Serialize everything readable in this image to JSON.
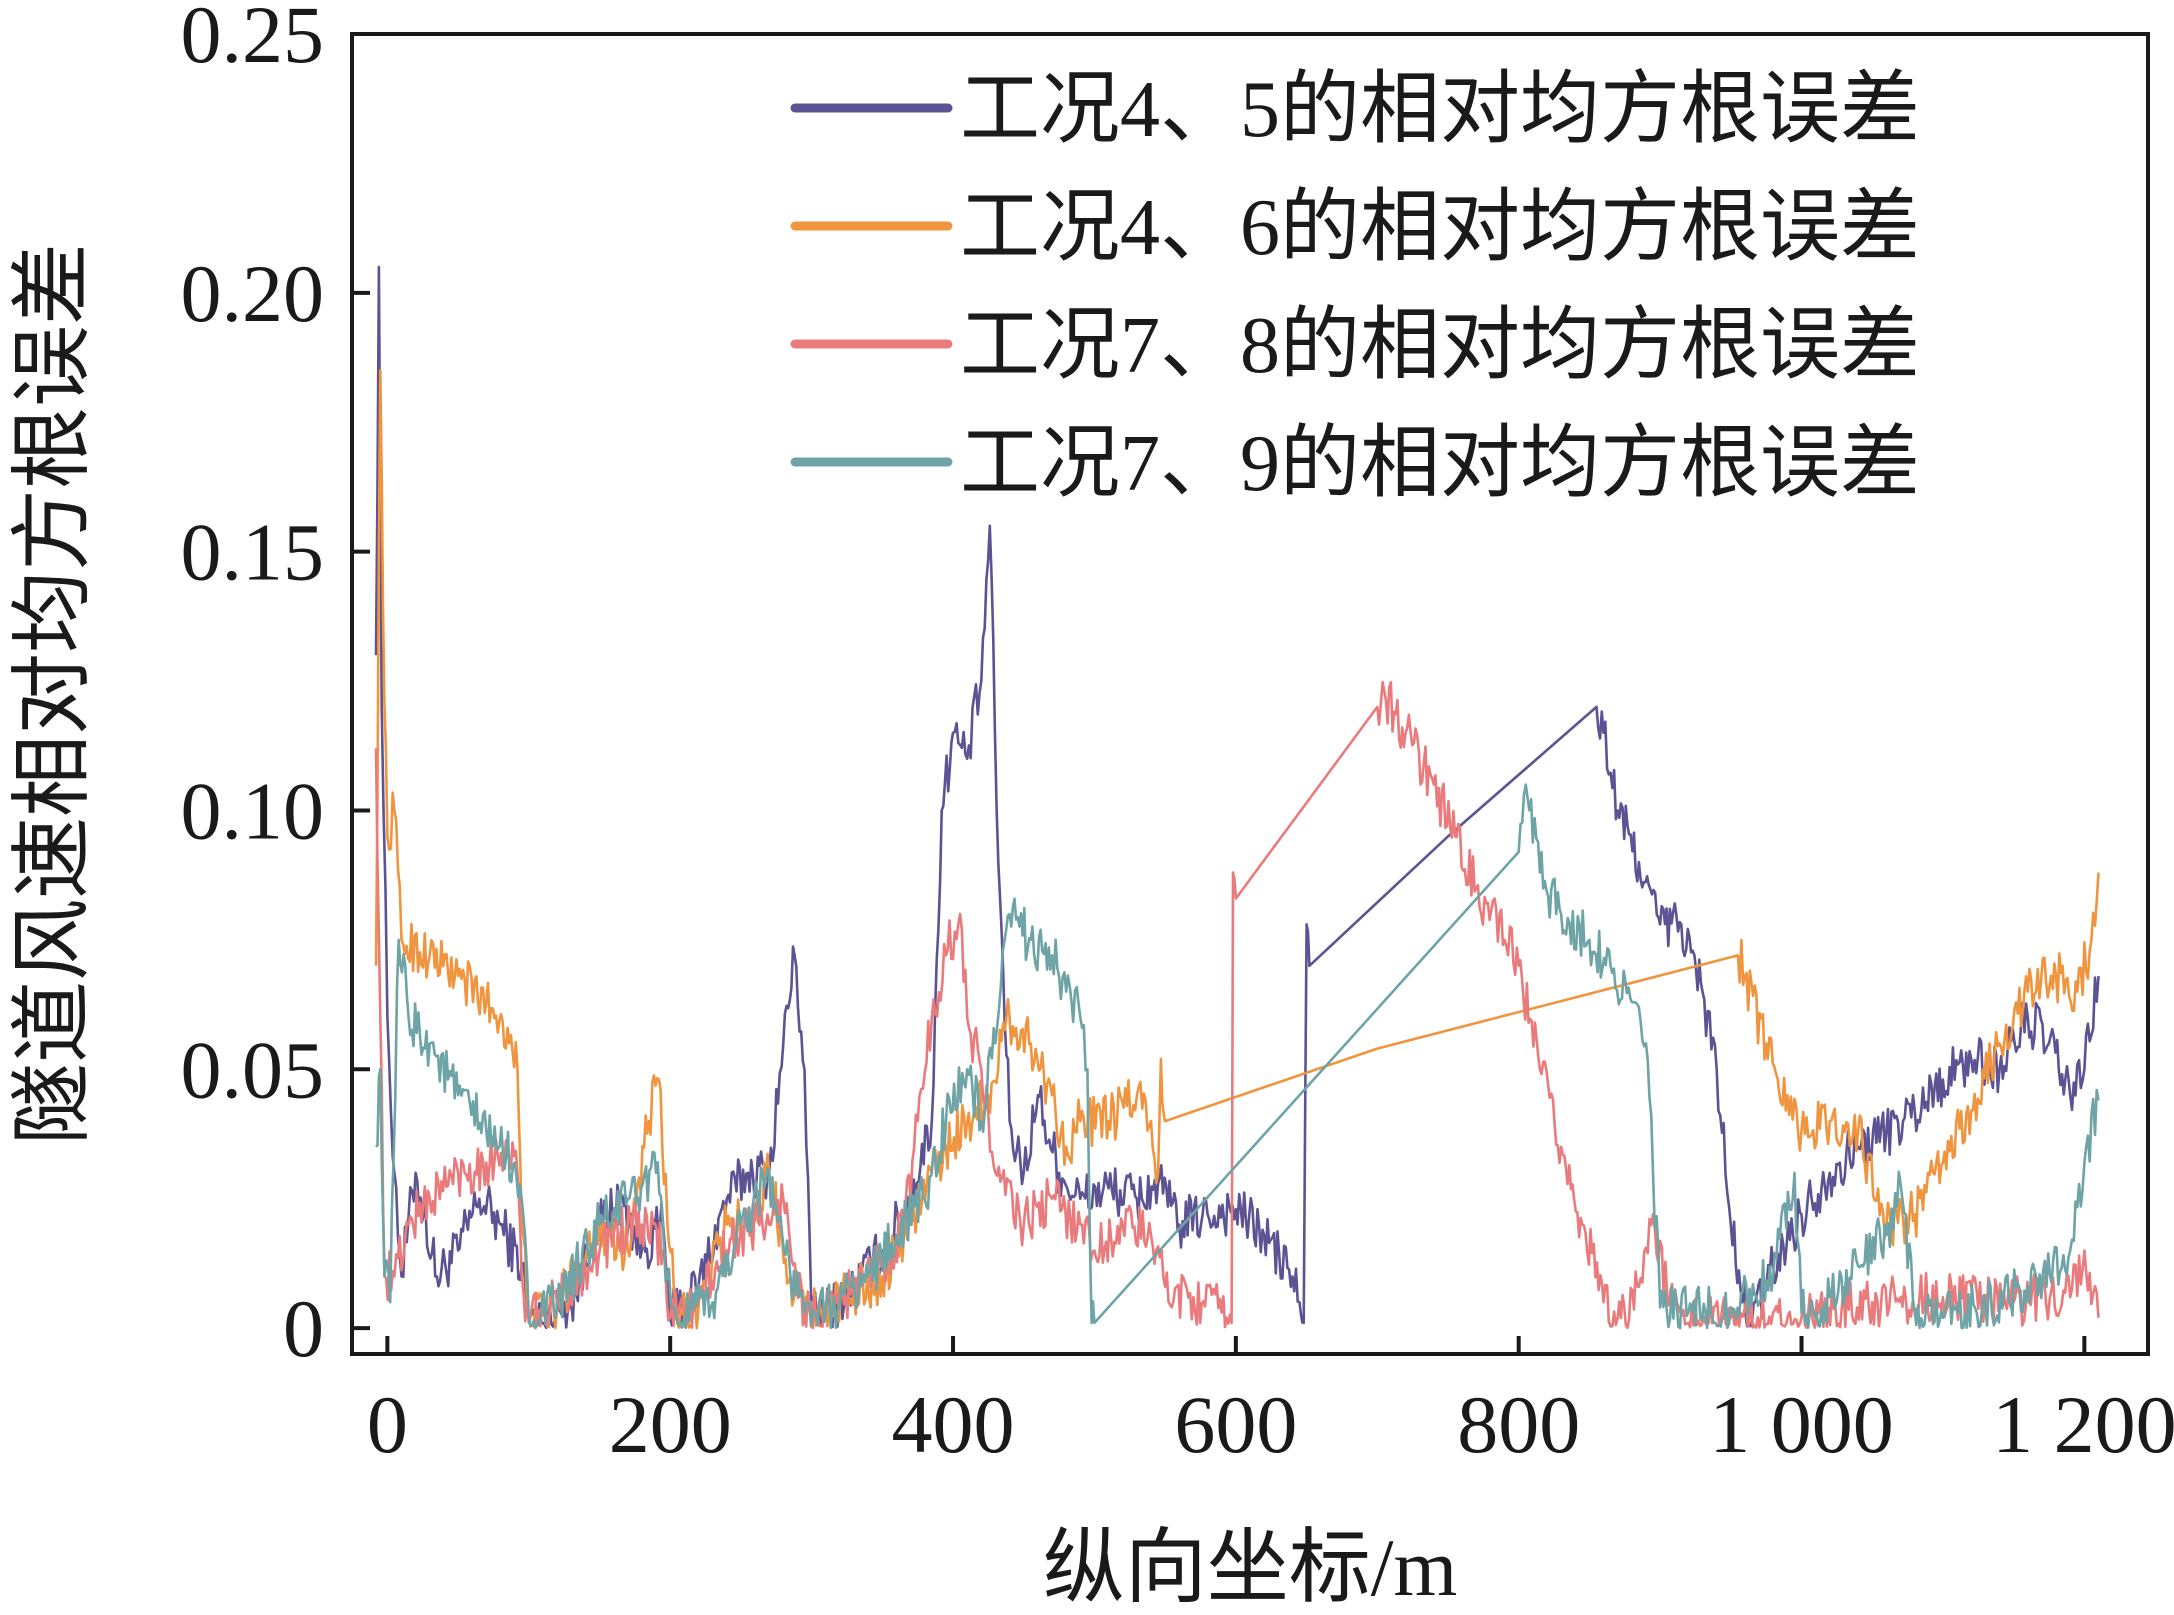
{
  "chart_data": {
    "type": "line",
    "title": "",
    "xlabel": "纵向坐标/m",
    "ylabel": "隧道风速相对均方根误差",
    "xlim": [
      -25,
      1245
    ],
    "ylim": [
      -0.005,
      0.25
    ],
    "xticks": [
      0,
      200,
      400,
      600,
      800,
      1000,
      1200
    ],
    "xtick_labels": [
      "0",
      "200",
      "400",
      "600",
      "800",
      "1 000",
      "1 200"
    ],
    "yticks": [
      0,
      0.05,
      0.1,
      0.15,
      0.2,
      0.25
    ],
    "ytick_labels": [
      "0",
      "0.05",
      "0.10",
      "0.15",
      "0.20",
      "0.25"
    ],
    "legend_position": "top-right",
    "series": [
      {
        "name": "工况4、5的相对均方根误差",
        "color": "#5b5393",
        "noise": 0.005,
        "points": [
          [
            -8,
            0.13
          ],
          [
            -6,
            0.205
          ],
          [
            -4,
            0.12
          ],
          [
            0,
            0.06
          ],
          [
            5,
            0.03
          ],
          [
            10,
            0.01
          ],
          [
            20,
            0.03
          ],
          [
            35,
            0.01
          ],
          [
            50,
            0.015
          ],
          [
            65,
            0.025
          ],
          [
            80,
            0.02
          ],
          [
            95,
            0.012
          ],
          [
            100,
            0.002
          ],
          [
            110,
            0.001
          ],
          [
            130,
            0.005
          ],
          [
            150,
            0.02
          ],
          [
            165,
            0.025
          ],
          [
            180,
            0.015
          ],
          [
            195,
            0.02
          ],
          [
            200,
            0.002
          ],
          [
            220,
            0.008
          ],
          [
            240,
            0.025
          ],
          [
            255,
            0.03
          ],
          [
            270,
            0.03
          ],
          [
            280,
            0.055
          ],
          [
            288,
            0.072
          ],
          [
            295,
            0.05
          ],
          [
            300,
            0.002
          ],
          [
            310,
            0.003
          ],
          [
            330,
            0.008
          ],
          [
            350,
            0.015
          ],
          [
            370,
            0.025
          ],
          [
            385,
            0.04
          ],
          [
            392,
            0.1
          ],
          [
            400,
            0.115
          ],
          [
            410,
            0.11
          ],
          [
            420,
            0.125
          ],
          [
            426,
            0.155
          ],
          [
            432,
            0.09
          ],
          [
            440,
            0.04
          ],
          [
            450,
            0.03
          ],
          [
            460,
            0.045
          ],
          [
            475,
            0.03
          ],
          [
            490,
            0.025
          ],
          [
            510,
            0.027
          ],
          [
            530,
            0.025
          ],
          [
            545,
            0.028
          ],
          [
            560,
            0.02
          ],
          [
            580,
            0.022
          ],
          [
            600,
            0.023
          ],
          [
            620,
            0.018
          ],
          [
            640,
            0.01
          ],
          [
            645,
            0.005
          ],
          [
            648,
            0.001
          ],
          [
            650,
            0.078
          ],
          [
            652,
            0.07
          ],
          [
            750,
            0.095
          ],
          [
            855,
            0.12
          ],
          [
            860,
            0.115
          ],
          [
            870,
            0.1
          ],
          [
            885,
            0.09
          ],
          [
            900,
            0.078
          ],
          [
            915,
            0.078
          ],
          [
            930,
            0.065
          ],
          [
            940,
            0.05
          ],
          [
            950,
            0.02
          ],
          [
            958,
            0.005
          ],
          [
            965,
            0.001
          ],
          [
            980,
            0.012
          ],
          [
            1000,
            0.022
          ],
          [
            1020,
            0.03
          ],
          [
            1040,
            0.035
          ],
          [
            1060,
            0.038
          ],
          [
            1080,
            0.042
          ],
          [
            1100,
            0.048
          ],
          [
            1120,
            0.052
          ],
          [
            1140,
            0.05
          ],
          [
            1160,
            0.06
          ],
          [
            1175,
            0.055
          ],
          [
            1190,
            0.045
          ],
          [
            1200,
            0.05
          ],
          [
            1210,
            0.068
          ]
        ]
      },
      {
        "name": "工况4、6的相对均方根误差",
        "color": "#f0953f",
        "noise": 0.005,
        "points": [
          [
            -8,
            0.07
          ],
          [
            -5,
            0.185
          ],
          [
            -2,
            0.12
          ],
          [
            0,
            0.095
          ],
          [
            5,
            0.1
          ],
          [
            10,
            0.075
          ],
          [
            30,
            0.072
          ],
          [
            50,
            0.068
          ],
          [
            70,
            0.063
          ],
          [
            85,
            0.058
          ],
          [
            92,
            0.05
          ],
          [
            95,
            0.02
          ],
          [
            100,
            0.002
          ],
          [
            120,
            0.004
          ],
          [
            150,
            0.02
          ],
          [
            170,
            0.015
          ],
          [
            185,
            0.04
          ],
          [
            192,
            0.048
          ],
          [
            198,
            0.02
          ],
          [
            205,
            0.001
          ],
          [
            220,
            0.004
          ],
          [
            240,
            0.02
          ],
          [
            255,
            0.02
          ],
          [
            270,
            0.03
          ],
          [
            285,
            0.01
          ],
          [
            295,
            0.004
          ],
          [
            310,
            0.003
          ],
          [
            330,
            0.007
          ],
          [
            350,
            0.01
          ],
          [
            370,
            0.02
          ],
          [
            385,
            0.03
          ],
          [
            395,
            0.035
          ],
          [
            410,
            0.04
          ],
          [
            425,
            0.045
          ],
          [
            440,
            0.06
          ],
          [
            455,
            0.055
          ],
          [
            470,
            0.045
          ],
          [
            480,
            0.035
          ],
          [
            490,
            0.04
          ],
          [
            510,
            0.04
          ],
          [
            530,
            0.045
          ],
          [
            540,
            0.04
          ],
          [
            545,
            0.03
          ],
          [
            547,
            0.052
          ],
          [
            550,
            0.04
          ],
          [
            700,
            0.054
          ],
          [
            955,
            0.072
          ],
          [
            960,
            0.068
          ],
          [
            975,
            0.055
          ],
          [
            990,
            0.045
          ],
          [
            1000,
            0.038
          ],
          [
            1020,
            0.04
          ],
          [
            1040,
            0.038
          ],
          [
            1060,
            0.02
          ],
          [
            1080,
            0.022
          ],
          [
            1100,
            0.032
          ],
          [
            1120,
            0.042
          ],
          [
            1140,
            0.055
          ],
          [
            1160,
            0.065
          ],
          [
            1180,
            0.068
          ],
          [
            1195,
            0.065
          ],
          [
            1205,
            0.075
          ],
          [
            1210,
            0.088
          ]
        ]
      },
      {
        "name": "工况7、8的相对均方根误差",
        "color": "#ea7b7c",
        "noise": 0.005,
        "points": [
          [
            -8,
            0.112
          ],
          [
            -5,
            0.06
          ],
          [
            -2,
            0.01
          ],
          [
            5,
            0.01
          ],
          [
            15,
            0.02
          ],
          [
            30,
            0.025
          ],
          [
            50,
            0.03
          ],
          [
            70,
            0.032
          ],
          [
            85,
            0.035
          ],
          [
            92,
            0.03
          ],
          [
            95,
            0.01
          ],
          [
            100,
            0.001
          ],
          [
            120,
            0.005
          ],
          [
            140,
            0.012
          ],
          [
            160,
            0.018
          ],
          [
            180,
            0.02
          ],
          [
            195,
            0.015
          ],
          [
            200,
            0.002
          ],
          [
            220,
            0.005
          ],
          [
            240,
            0.015
          ],
          [
            255,
            0.02
          ],
          [
            270,
            0.02
          ],
          [
            280,
            0.025
          ],
          [
            295,
            0.003
          ],
          [
            310,
            0.002
          ],
          [
            330,
            0.008
          ],
          [
            350,
            0.012
          ],
          [
            365,
            0.02
          ],
          [
            375,
            0.04
          ],
          [
            385,
            0.06
          ],
          [
            395,
            0.072
          ],
          [
            405,
            0.08
          ],
          [
            410,
            0.06
          ],
          [
            420,
            0.05
          ],
          [
            430,
            0.03
          ],
          [
            450,
            0.02
          ],
          [
            470,
            0.025
          ],
          [
            490,
            0.02
          ],
          [
            500,
            0.015
          ],
          [
            520,
            0.02
          ],
          [
            540,
            0.018
          ],
          [
            550,
            0.008
          ],
          [
            570,
            0.006
          ],
          [
            590,
            0.003
          ],
          [
            597,
            0.001
          ],
          [
            598,
            0.088
          ],
          [
            600,
            0.083
          ],
          [
            700,
            0.12
          ],
          [
            705,
            0.123
          ],
          [
            720,
            0.115
          ],
          [
            740,
            0.105
          ],
          [
            755,
            0.095
          ],
          [
            770,
            0.085
          ],
          [
            790,
            0.075
          ],
          [
            800,
            0.07
          ],
          [
            815,
            0.05
          ],
          [
            830,
            0.035
          ],
          [
            845,
            0.02
          ],
          [
            860,
            0.005
          ],
          [
            870,
            0.002
          ],
          [
            885,
            0.008
          ],
          [
            895,
            0.022
          ],
          [
            905,
            0.006
          ],
          [
            920,
            0.001
          ],
          [
            950,
            0.002
          ],
          [
            1000,
            0.002
          ],
          [
            1050,
            0.005
          ],
          [
            1100,
            0.006
          ],
          [
            1150,
            0.005
          ],
          [
            1190,
            0.006
          ],
          [
            1200,
            0.015
          ],
          [
            1210,
            0.002
          ]
        ]
      },
      {
        "name": "工况7、9的相对均方根误差",
        "color": "#6fa4a6",
        "noise": 0.005,
        "points": [
          [
            -8,
            0.035
          ],
          [
            -5,
            0.05
          ],
          [
            -2,
            0.01
          ],
          [
            2,
            0.005
          ],
          [
            8,
            0.075
          ],
          [
            15,
            0.06
          ],
          [
            30,
            0.055
          ],
          [
            50,
            0.045
          ],
          [
            70,
            0.038
          ],
          [
            90,
            0.032
          ],
          [
            95,
            0.025
          ],
          [
            100,
            0.002
          ],
          [
            120,
            0.004
          ],
          [
            150,
            0.02
          ],
          [
            170,
            0.025
          ],
          [
            190,
            0.03
          ],
          [
            198,
            0.01
          ],
          [
            205,
            0.001
          ],
          [
            230,
            0.005
          ],
          [
            250,
            0.02
          ],
          [
            270,
            0.03
          ],
          [
            285,
            0.01
          ],
          [
            295,
            0.003
          ],
          [
            310,
            0.003
          ],
          [
            340,
            0.01
          ],
          [
            360,
            0.018
          ],
          [
            380,
            0.025
          ],
          [
            395,
            0.04
          ],
          [
            410,
            0.05
          ],
          [
            420,
            0.04
          ],
          [
            430,
            0.055
          ],
          [
            440,
            0.08
          ],
          [
            455,
            0.075
          ],
          [
            470,
            0.072
          ],
          [
            480,
            0.065
          ],
          [
            490,
            0.06
          ],
          [
            495,
            0.05
          ],
          [
            498,
            0.001
          ],
          [
            500,
            0.001
          ],
          [
            800,
            0.092
          ],
          [
            805,
            0.105
          ],
          [
            815,
            0.088
          ],
          [
            830,
            0.08
          ],
          [
            850,
            0.075
          ],
          [
            865,
            0.07
          ],
          [
            880,
            0.063
          ],
          [
            890,
            0.055
          ],
          [
            895,
            0.03
          ],
          [
            900,
            0.004
          ],
          [
            920,
            0.003
          ],
          [
            950,
            0.004
          ],
          [
            980,
            0.01
          ],
          [
            995,
            0.03
          ],
          [
            1000,
            0.003
          ],
          [
            1020,
            0.006
          ],
          [
            1040,
            0.012
          ],
          [
            1060,
            0.018
          ],
          [
            1070,
            0.028
          ],
          [
            1080,
            0.003
          ],
          [
            1100,
            0.002
          ],
          [
            1130,
            0.004
          ],
          [
            1160,
            0.008
          ],
          [
            1190,
            0.015
          ],
          [
            1200,
            0.032
          ],
          [
            1210,
            0.044
          ]
        ]
      }
    ]
  }
}
